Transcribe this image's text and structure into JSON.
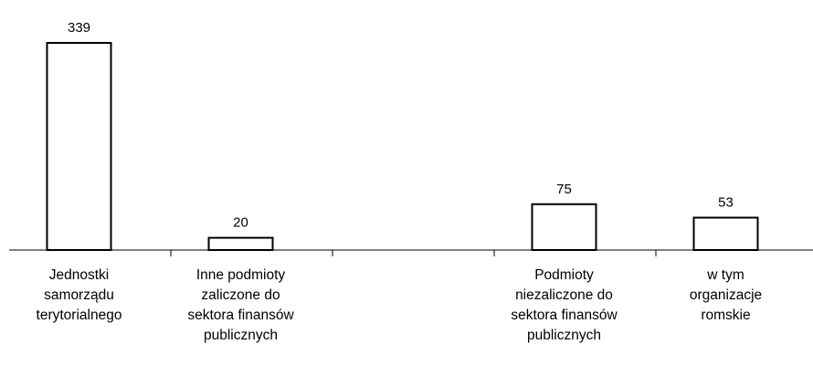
{
  "chart_data": {
    "type": "bar",
    "categories": [
      "Jednostki\nsamorządu\nterytorialnego",
      "Inne podmioty\nzaliczone do\nsektora finansów\npublicznych",
      null,
      "Podmioty\nniezaliczone do\nsektora finansów\npublicznych",
      "w tym\norganizacje\nromskie"
    ],
    "values": [
      339,
      20,
      null,
      75,
      53
    ],
    "color": "#ffffff"
  }
}
